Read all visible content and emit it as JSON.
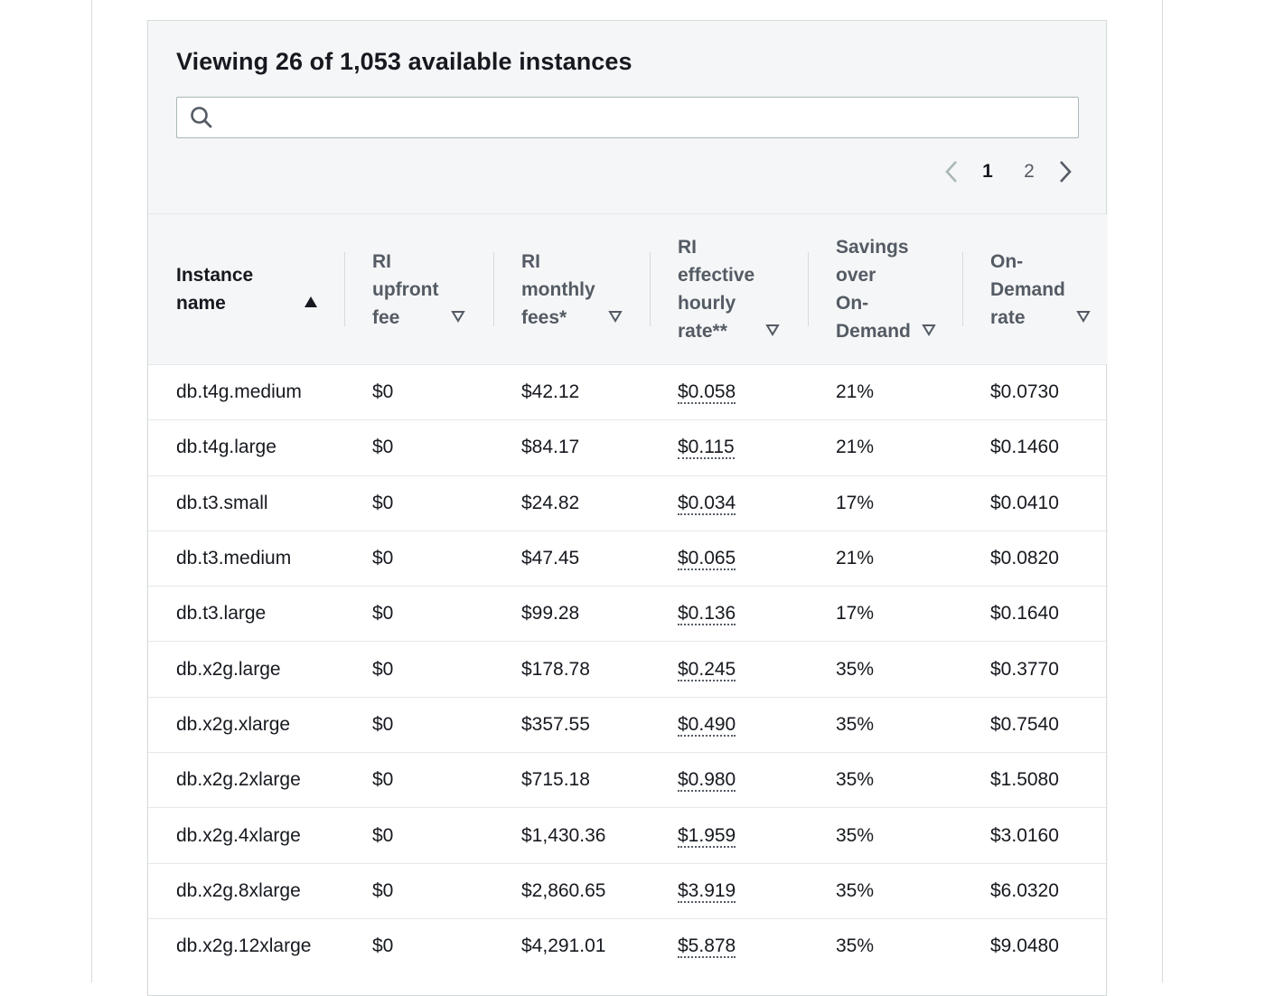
{
  "header": {
    "title": "Viewing 26 of 1,053 available instances"
  },
  "search": {
    "value": "",
    "placeholder": ""
  },
  "pagination": {
    "pages": [
      "1",
      "2"
    ],
    "current": "1"
  },
  "columns": [
    {
      "label_lines": [
        "Instance",
        "name"
      ],
      "sort": "ascending"
    },
    {
      "label_lines": [
        "RI",
        "upfront",
        "fee"
      ],
      "sort": "none"
    },
    {
      "label_lines": [
        "RI",
        "monthly",
        "fees*"
      ],
      "sort": "none"
    },
    {
      "label_lines": [
        "RI",
        "effective",
        "hourly",
        "rate**"
      ],
      "sort": "none"
    },
    {
      "label_lines": [
        "Savings",
        "over",
        "On-",
        "Demand"
      ],
      "sort": "none"
    },
    {
      "label_lines": [
        "On-",
        "Demand",
        "rate"
      ],
      "sort": "none"
    }
  ],
  "rows": [
    {
      "instance": "db.t4g.medium",
      "upfront": "$0",
      "monthly": "$42.12",
      "effective": "$0.058",
      "savings": "21%",
      "ondemand": "$0.0730"
    },
    {
      "instance": "db.t4g.large",
      "upfront": "$0",
      "monthly": "$84.17",
      "effective": "$0.115",
      "savings": "21%",
      "ondemand": "$0.1460"
    },
    {
      "instance": "db.t3.small",
      "upfront": "$0",
      "monthly": "$24.82",
      "effective": "$0.034",
      "savings": "17%",
      "ondemand": "$0.0410"
    },
    {
      "instance": "db.t3.medium",
      "upfront": "$0",
      "monthly": "$47.45",
      "effective": "$0.065",
      "savings": "21%",
      "ondemand": "$0.0820"
    },
    {
      "instance": "db.t3.large",
      "upfront": "$0",
      "monthly": "$99.28",
      "effective": "$0.136",
      "savings": "17%",
      "ondemand": "$0.1640"
    },
    {
      "instance": "db.x2g.large",
      "upfront": "$0",
      "monthly": "$178.78",
      "effective": "$0.245",
      "savings": "35%",
      "ondemand": "$0.3770"
    },
    {
      "instance": "db.x2g.xlarge",
      "upfront": "$0",
      "monthly": "$357.55",
      "effective": "$0.490",
      "savings": "35%",
      "ondemand": "$0.7540"
    },
    {
      "instance": "db.x2g.2xlarge",
      "upfront": "$0",
      "monthly": "$715.18",
      "effective": "$0.980",
      "savings": "35%",
      "ondemand": "$1.5080"
    },
    {
      "instance": "db.x2g.4xlarge",
      "upfront": "$0",
      "monthly": "$1,430.36",
      "effective": "$1.959",
      "savings": "35%",
      "ondemand": "$3.0160"
    },
    {
      "instance": "db.x2g.8xlarge",
      "upfront": "$0",
      "monthly": "$2,860.65",
      "effective": "$3.919",
      "savings": "35%",
      "ondemand": "$6.0320"
    },
    {
      "instance": "db.x2g.12xlarge",
      "upfront": "$0",
      "monthly": "$4,291.01",
      "effective": "$5.878",
      "savings": "35%",
      "ondemand": "$9.0480"
    }
  ],
  "icons": {
    "search": "search-icon",
    "prev": "chevron-left-icon",
    "next": "chevron-right-icon",
    "sort_asc": "caret-up-filled-icon",
    "sort_none": "caret-down-outline-icon"
  },
  "colors": {
    "header_bg": "#f5f6f7",
    "border": "#d5dbdb",
    "text_primary": "#16191f",
    "text_secondary": "#545b64",
    "disabled_arrow": "#aab7b8"
  }
}
